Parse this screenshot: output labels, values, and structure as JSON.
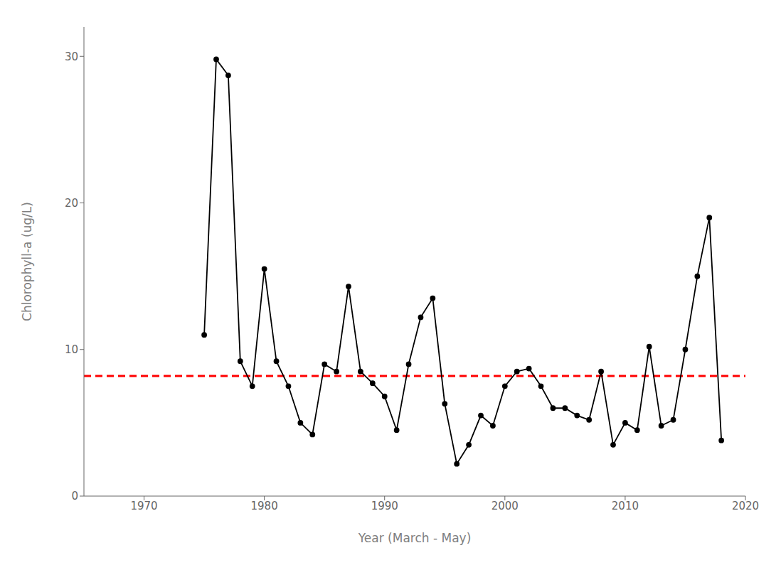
{
  "chart_data": {
    "type": "line",
    "x": [
      1975,
      1976,
      1977,
      1978,
      1979,
      1980,
      1981,
      1982,
      1983,
      1984,
      1985,
      1986,
      1987,
      1988,
      1989,
      1990,
      1991,
      1992,
      1993,
      1994,
      1995,
      1996,
      1997,
      1998,
      1999,
      2000,
      2001,
      2002,
      2003,
      2004,
      2005,
      2006,
      2007,
      2008,
      2009,
      2010,
      2011,
      2012,
      2013,
      2014,
      2015,
      2016,
      2017,
      2018
    ],
    "values": [
      11.0,
      29.8,
      28.7,
      9.2,
      7.5,
      15.5,
      9.2,
      7.5,
      5.0,
      4.2,
      9.0,
      8.5,
      14.3,
      8.5,
      7.7,
      6.8,
      4.5,
      9.0,
      12.2,
      13.5,
      6.3,
      2.2,
      3.5,
      5.5,
      4.8,
      7.5,
      8.5,
      8.7,
      7.5,
      6.0,
      6.0,
      5.5,
      5.2,
      8.5,
      3.5,
      5.0,
      4.5,
      10.2,
      4.8,
      5.2,
      10.0,
      15.0,
      19.0,
      3.8
    ],
    "color": "#000000",
    "marker": "circle",
    "line_style": "solid",
    "xlabel": "Year (March - May)",
    "ylabel": "Chlorophyll-a (ug/L)",
    "xlim": [
      1965,
      2020
    ],
    "ylim": [
      0,
      32
    ],
    "xticks": [
      1970,
      1980,
      1990,
      2000,
      2010,
      2020
    ],
    "yticks": [
      0,
      10,
      20,
      30
    ],
    "grid": false,
    "reference_line": {
      "value": 8.2,
      "color": "#FF0000",
      "line_style": "dashed"
    }
  }
}
